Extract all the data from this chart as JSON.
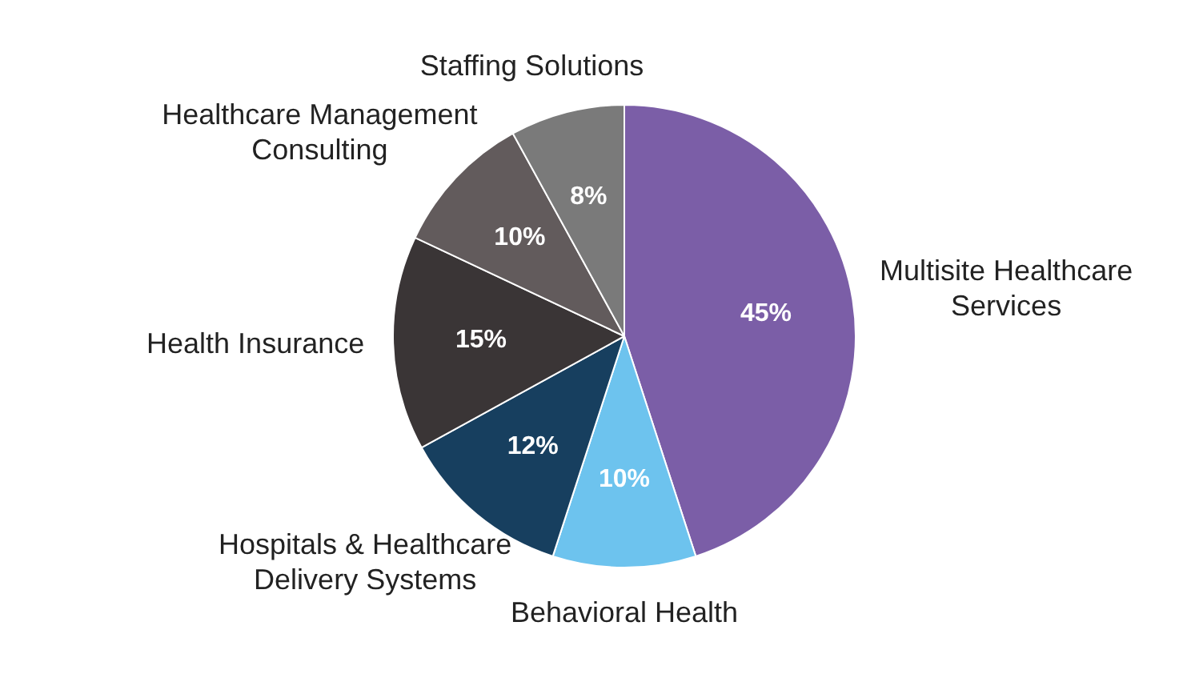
{
  "chart_data": {
    "type": "pie",
    "categories": [
      "Multisite Healthcare Services",
      "Behavioral Health",
      "Hospitals & Healthcare Delivery Systems",
      "Health Insurance",
      "Healthcare Management Consulting",
      "Staffing Solutions"
    ],
    "values": [
      45,
      10,
      12,
      15,
      10,
      8
    ],
    "colors": [
      "#7b5ea7",
      "#6dc3ee",
      "#173f5f",
      "#3a3536",
      "#625b5c",
      "#7a7a7a"
    ],
    "value_labels": [
      "45%",
      "10%",
      "12%",
      "15%",
      "10%",
      "8%"
    ],
    "legend": false
  }
}
